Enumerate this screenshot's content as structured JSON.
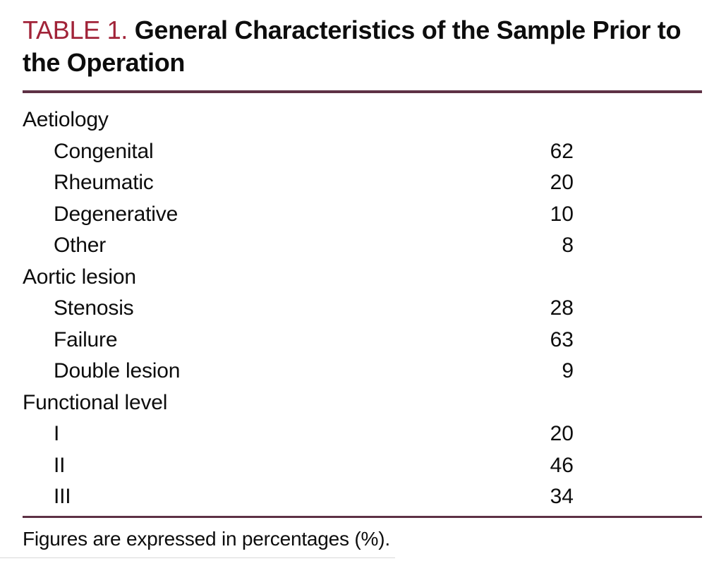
{
  "table": {
    "label": "TABLE 1.",
    "title": "General Characteristics of the Sample Prior to the Operation",
    "footnote": "Figures are expressed in percentages (%).",
    "sections": [
      {
        "header": "Aetiology",
        "rows": [
          {
            "label": "Congenital",
            "value": "62"
          },
          {
            "label": "Rheumatic",
            "value": "20"
          },
          {
            "label": "Degenerative",
            "value": "10"
          },
          {
            "label": "Other",
            "value": "8"
          }
        ]
      },
      {
        "header": "Aortic lesion",
        "rows": [
          {
            "label": "Stenosis",
            "value": "28"
          },
          {
            "label": "Failure",
            "value": "63"
          },
          {
            "label": "Double lesion",
            "value": "9"
          }
        ]
      },
      {
        "header": "Functional level",
        "rows": [
          {
            "label": "I",
            "value": "20"
          },
          {
            "label": "II",
            "value": "46"
          },
          {
            "label": "III",
            "value": "34"
          }
        ]
      }
    ]
  },
  "colors": {
    "accent_red": "#A12338",
    "rule_maroon": "#5E3145",
    "text": "#0d0d0d",
    "background": "#ffffff"
  }
}
